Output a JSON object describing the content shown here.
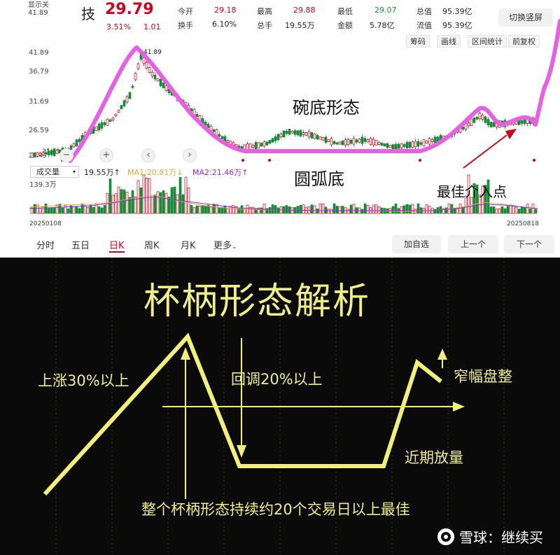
{
  "header": {
    "corner_label": "显示关",
    "name_fragment": "技",
    "price": "29.79",
    "change_pct": "3.51%",
    "change_amt": "1.01",
    "corner_price": "41.89",
    "stats": [
      {
        "label": "今开",
        "value": "29.18"
      },
      {
        "label": "最高",
        "value": "29.88"
      },
      {
        "label": "最低",
        "value": "29.07"
      },
      {
        "label": "总值",
        "value": "95.39亿"
      },
      {
        "label": "换手",
        "value": "6.10%"
      },
      {
        "label": "总手",
        "value": "19.55万"
      },
      {
        "label": "金额",
        "value": "5.78亿"
      },
      {
        "label": "流值",
        "value": "95.39亿"
      }
    ],
    "switch_button": "切换竖屏"
  },
  "toolbar": {
    "buttons": [
      "筹码",
      "画线",
      "区间统计",
      "前复权"
    ]
  },
  "price_axis": {
    "ticks": [
      "41.89",
      "36.79",
      "31.69",
      "26.59",
      "21.49"
    ],
    "high_marker": "41.89",
    "low_marker": "21.49"
  },
  "nav_icons": [
    "minus-icon",
    "plus-icon",
    "chevron-left-icon",
    "chevron-right-icon"
  ],
  "indicator": {
    "select_label": "成交量",
    "volume": "19.55万↑",
    "ma1": "MA1:20.81万↓",
    "ma2": "MA2:21.46万↑",
    "max_volume": "139.3万",
    "ma1_color": "#e8a33d",
    "ma2_color": "#8a2be2"
  },
  "dates": {
    "start": "20250108",
    "end": "20250818"
  },
  "periods": [
    {
      "label": "分时",
      "active": false
    },
    {
      "label": "五日",
      "active": false
    },
    {
      "label": "日K",
      "active": true
    },
    {
      "label": "周K",
      "active": false
    },
    {
      "label": "月K",
      "active": false
    },
    {
      "label": "更多",
      "active": false
    }
  ],
  "actions": {
    "add": "加自选",
    "prev": "上一个",
    "next": "下一个"
  },
  "annotations": {
    "bowl": "碗底形态",
    "arc": "圆弧底",
    "entry": "最佳介入点",
    "highlight_color": "#e75fe3",
    "arrow_color": "#d0021b"
  },
  "cup_handle": {
    "title": "杯柄形态解析",
    "rise": "上涨30%以上",
    "pullback": "回调20%以上",
    "consolidation": "窄幅盘整",
    "volume": "近期放量",
    "duration": "整个杯柄形态持续约20个交易日以上最佳",
    "line_color": "#f3f07a"
  },
  "watermark": {
    "icon": "snowball-logo-icon",
    "text": "雪球：继续买"
  },
  "colors": {
    "up": "#d0021b",
    "down": "#1a8a3a"
  }
}
